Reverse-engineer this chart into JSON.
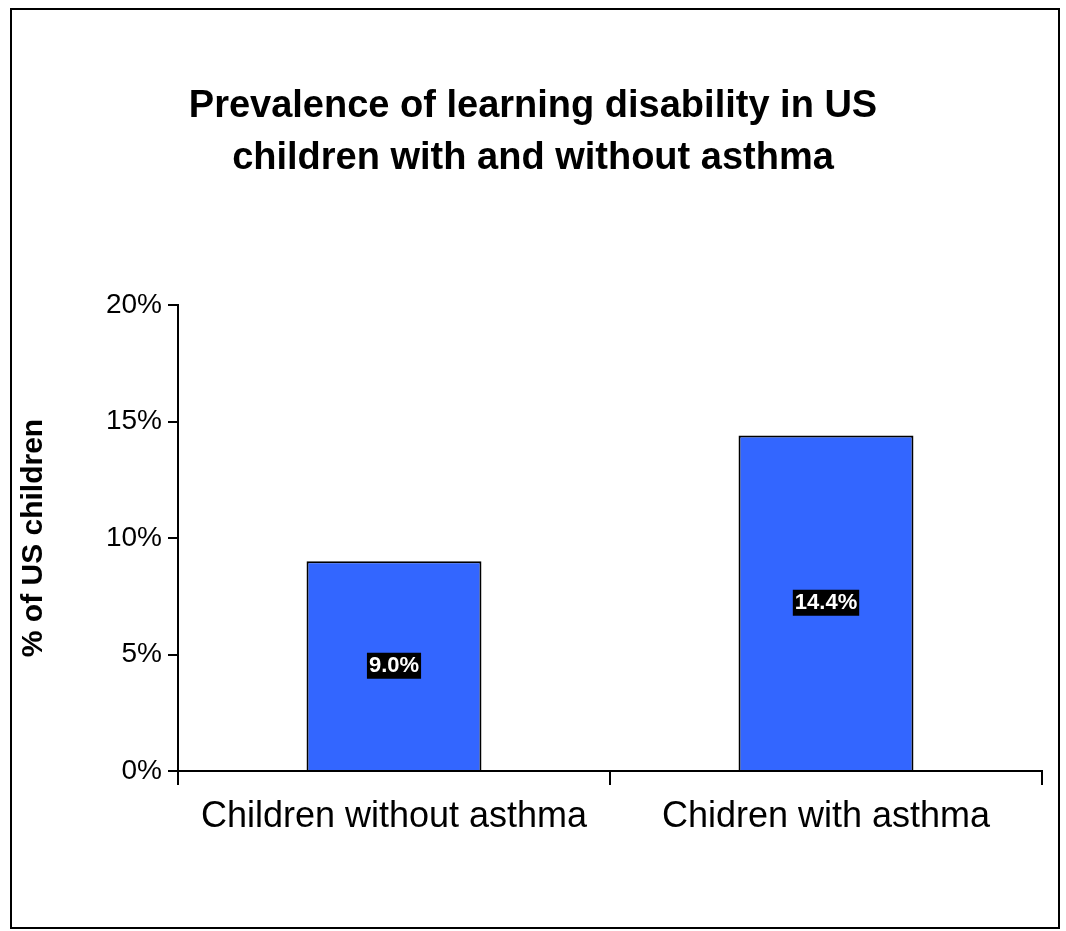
{
  "chart_data": {
    "type": "bar",
    "title": "Prevalence of learning disability in US children with and without asthma",
    "categories": [
      "Children without asthma",
      "Chidren with asthma"
    ],
    "values": [
      9.0,
      14.4
    ],
    "color": "#3366ff",
    "value_labels": [
      "9.0%",
      "14.4%"
    ],
    "ylabel": "% of US children",
    "ylim": [
      0,
      20
    ],
    "yticks": [
      {
        "value": 0,
        "label": "0%"
      },
      {
        "value": 5,
        "label": "5%"
      },
      {
        "value": 10,
        "label": "10%"
      },
      {
        "value": 15,
        "label": "15%"
      },
      {
        "value": 20,
        "label": "20%"
      }
    ],
    "grid": false,
    "legend": false
  }
}
